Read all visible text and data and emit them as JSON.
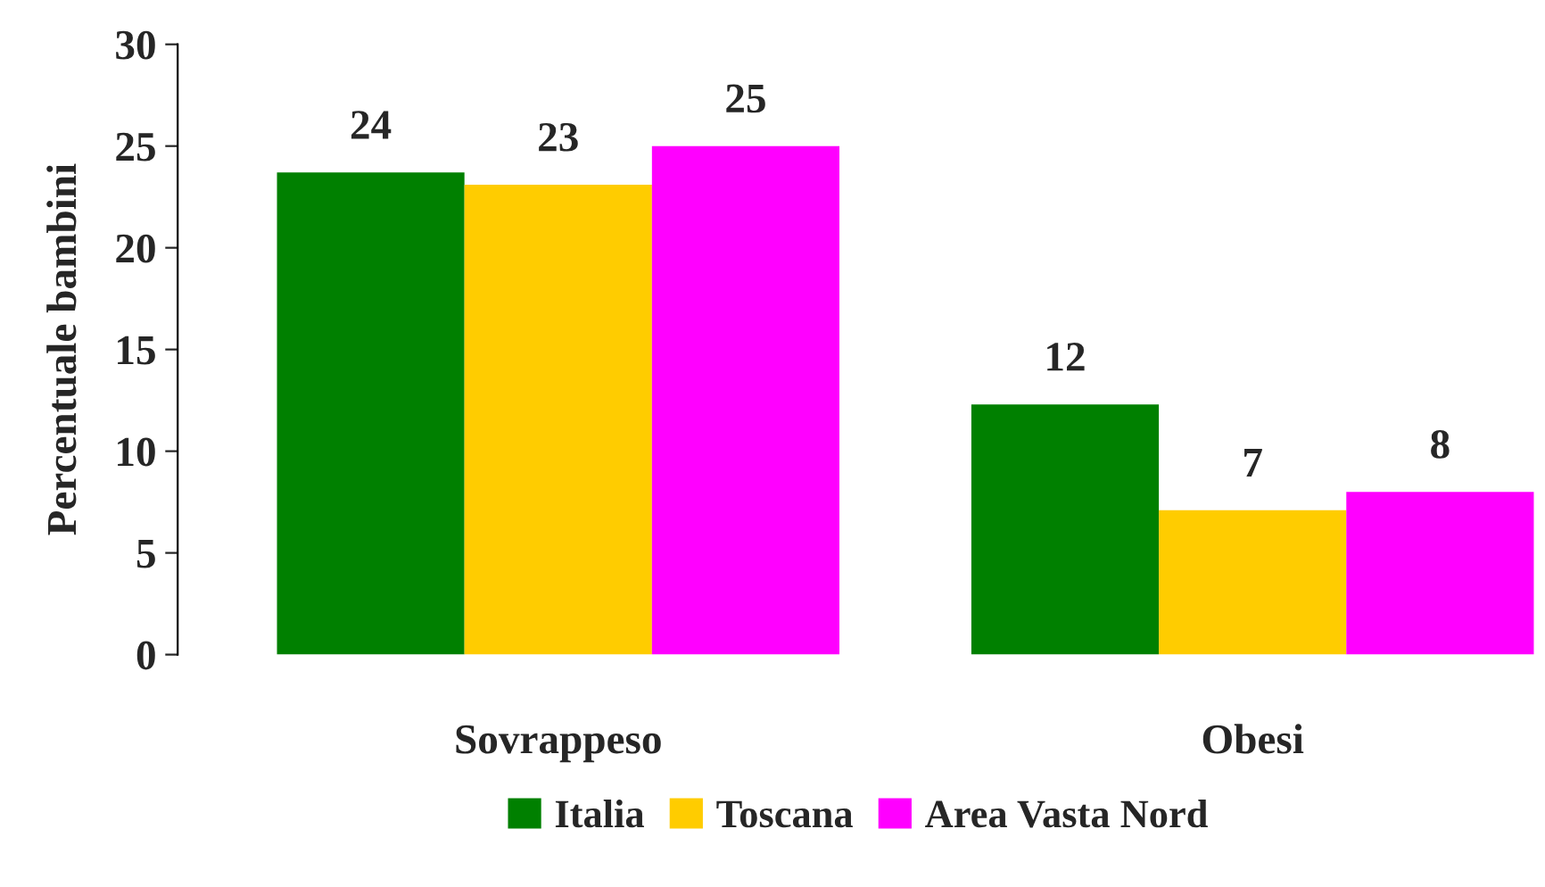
{
  "chart_data": {
    "type": "bar",
    "ylabel": "Percentuale bambini",
    "categories": [
      "Sovrappeso",
      "Obesi"
    ],
    "series": [
      {
        "name": "Italia",
        "color": "#008000",
        "values": [
          23.7,
          12.3
        ],
        "value_labels": [
          "24",
          "12"
        ]
      },
      {
        "name": "Toscana",
        "color": "#ffcc00",
        "values": [
          23.1,
          7.1
        ],
        "value_labels": [
          "23",
          "7"
        ]
      },
      {
        "name": "Area Vasta Nord",
        "color": "#ff00ff",
        "values": [
          25,
          8
        ],
        "value_labels": [
          "25",
          "8"
        ]
      }
    ],
    "ylim": [
      0,
      30
    ],
    "yticks": [
      0,
      5,
      10,
      15,
      20,
      25,
      30
    ],
    "grid": false,
    "legend": "bottom"
  }
}
